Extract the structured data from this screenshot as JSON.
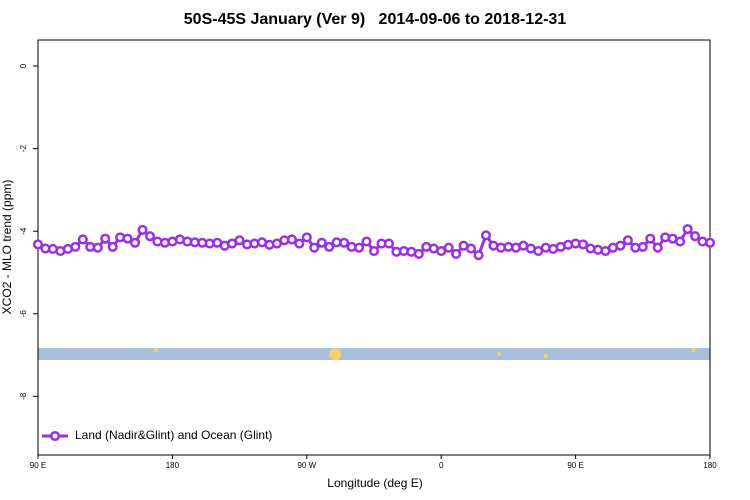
{
  "chart_data": {
    "type": "line",
    "title": "50S-45S January (Ver 9)   2014-09-06 to 2018-12-31",
    "xlabel": "Longitude (deg E)",
    "ylabel": "XCO2 - MLO trend (ppm)",
    "xlim": [
      90,
      540
    ],
    "ylim": [
      -9.42,
      0.63
    ],
    "xticks": [
      {
        "value": 90,
        "label": "90 E"
      },
      180,
      {
        "value": 270,
        "label": "90 W"
      },
      {
        "value": 360,
        "label": "0"
      },
      {
        "value": 450,
        "label": "90 E"
      },
      {
        "value": 540,
        "label": "180"
      }
    ],
    "yticks": [
      0,
      -2,
      -4,
      -6,
      -8
    ],
    "legend": "bottom-left",
    "x": [
      90,
      95,
      100,
      105,
      110,
      115,
      120,
      125,
      130,
      135,
      140,
      145,
      150,
      155,
      160,
      165,
      170,
      175,
      180,
      185,
      190,
      195,
      200,
      205,
      210,
      215,
      220,
      225,
      230,
      235,
      240,
      245,
      250,
      255,
      260,
      265,
      270,
      275,
      280,
      285,
      290,
      295,
      300,
      305,
      310,
      315,
      320,
      325,
      330,
      335,
      340,
      345,
      350,
      355,
      360,
      365,
      370,
      375,
      380,
      385,
      390,
      395,
      400,
      405,
      410,
      415,
      420,
      425,
      430,
      435,
      440,
      445,
      450,
      455,
      460,
      465,
      470,
      475,
      480,
      485,
      490,
      495,
      500,
      505,
      510,
      515,
      520,
      525,
      530,
      535,
      540
    ],
    "series": [
      {
        "name": "Land (Nadir&Glint) and Ocean (Glint)",
        "color": "#9b30e0",
        "values": [
          -4.32,
          -4.42,
          -4.43,
          -4.48,
          -4.43,
          -4.38,
          -4.2,
          -4.38,
          -4.4,
          -4.18,
          -4.38,
          -4.15,
          -4.18,
          -4.28,
          -3.97,
          -4.12,
          -4.25,
          -4.28,
          -4.25,
          -4.2,
          -4.25,
          -4.27,
          -4.28,
          -4.3,
          -4.28,
          -4.35,
          -4.3,
          -4.22,
          -4.32,
          -4.3,
          -4.27,
          -4.33,
          -4.3,
          -4.22,
          -4.2,
          -4.3,
          -4.15,
          -4.4,
          -4.28,
          -4.38,
          -4.27,
          -4.28,
          -4.38,
          -4.4,
          -4.25,
          -4.48,
          -4.3,
          -4.3,
          -4.5,
          -4.48,
          -4.5,
          -4.55,
          -4.38,
          -4.42,
          -4.48,
          -4.4,
          -4.55,
          -4.35,
          -4.42,
          -4.58,
          -4.1,
          -4.35,
          -4.4,
          -4.38,
          -4.4,
          -4.35,
          -4.42,
          -4.48,
          -4.4,
          -4.43,
          -4.38,
          -4.33,
          -4.3,
          -4.32,
          -4.42,
          -4.45,
          -4.48,
          -4.4,
          -4.35,
          -4.22,
          -4.4,
          -4.38,
          -4.18,
          -4.4,
          -4.15,
          -4.18,
          -4.25,
          -3.95,
          -4.12,
          -4.25,
          -4.28
        ]
      }
    ],
    "band": {
      "color": "#a9bfdc",
      "range": [
        -7.12,
        -6.83
      ]
    },
    "highlights": {
      "color": "#f5d36a",
      "x": [
        169,
        289,
        399,
        430,
        529
      ],
      "values": [
        -6.88,
        -6.98,
        -6.98,
        -7.02,
        -6.88
      ]
    }
  }
}
